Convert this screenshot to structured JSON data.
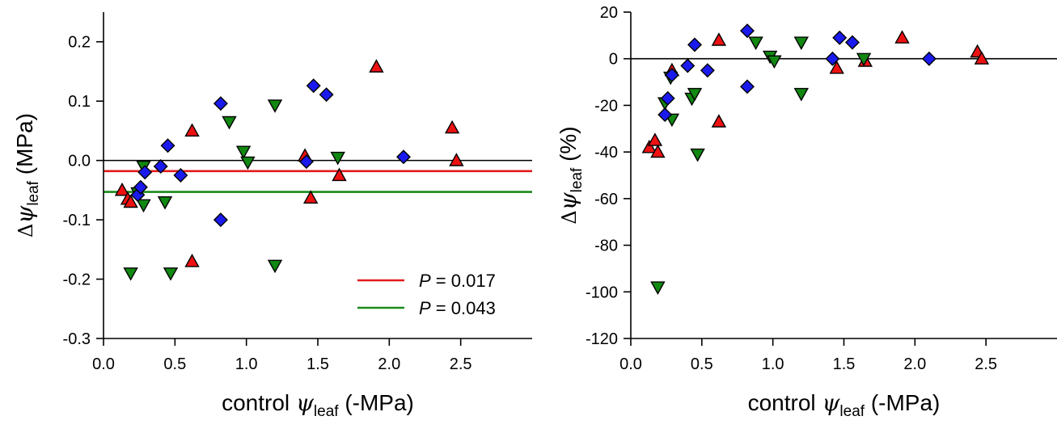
{
  "colors": {
    "red": "#ee1111",
    "green": "#118811",
    "blue": "#1a1aee",
    "red_line": "#e31a1c",
    "green_line": "#1a8a1a"
  },
  "chart_data": [
    {
      "type": "scatter",
      "xlabel_parts": [
        "control ",
        "ψ",
        "leaf",
        " (-MPa)"
      ],
      "ylabel_parts": [
        "Δ",
        "ψ",
        "leaf",
        " (MPa)"
      ],
      "xlim": [
        0,
        3.0
      ],
      "ylim": [
        -0.3,
        0.25
      ],
      "x_ticks": [
        "0.0",
        "0.5",
        "1.0",
        "1.5",
        "2.0",
        "2.5"
      ],
      "y_ticks": [
        "-0.3",
        "-0.2",
        "-0.1",
        "0.0",
        "0.1",
        "0.2"
      ],
      "zero_line": 0.0,
      "hlines": [
        {
          "y": -0.018,
          "color": "red"
        },
        {
          "y": -0.053,
          "color": "green"
        }
      ],
      "legend": [
        {
          "label_prefix": "P",
          "label_rest": " = 0.017",
          "color": "red"
        },
        {
          "label_prefix": "P",
          "label_rest": " = 0.043",
          "color": "green"
        }
      ],
      "legend_position": "bottom-right",
      "series": [
        {
          "marker": "triangle-up",
          "color": "red",
          "points": [
            [
              0.13,
              -0.05
            ],
            [
              0.17,
              -0.065
            ],
            [
              0.19,
              -0.07
            ],
            [
              0.62,
              0.05
            ],
            [
              0.62,
              -0.17
            ],
            [
              1.41,
              0.008
            ],
            [
              1.45,
              -0.063
            ],
            [
              1.65,
              -0.025
            ],
            [
              1.91,
              0.158
            ],
            [
              2.44,
              0.055
            ],
            [
              2.47,
              0.0
            ]
          ]
        },
        {
          "marker": "triangle-down",
          "color": "green",
          "points": [
            [
              0.19,
              -0.19
            ],
            [
              0.24,
              -0.055
            ],
            [
              0.28,
              -0.01
            ],
            [
              0.28,
              -0.075
            ],
            [
              0.43,
              -0.07
            ],
            [
              0.47,
              -0.19
            ],
            [
              0.88,
              0.065
            ],
            [
              0.98,
              0.015
            ],
            [
              1.01,
              -0.003
            ],
            [
              1.2,
              0.093
            ],
            [
              1.2,
              -0.177
            ],
            [
              1.64,
              0.005
            ]
          ]
        },
        {
          "marker": "diamond",
          "color": "blue",
          "points": [
            [
              0.24,
              -0.058
            ],
            [
              0.26,
              -0.045
            ],
            [
              0.29,
              -0.02
            ],
            [
              0.4,
              -0.01
            ],
            [
              0.45,
              0.025
            ],
            [
              0.54,
              -0.025
            ],
            [
              0.82,
              0.096
            ],
            [
              0.82,
              -0.1
            ],
            [
              1.42,
              -0.002
            ],
            [
              1.47,
              0.126
            ],
            [
              1.56,
              0.111
            ],
            [
              2.1,
              0.006
            ]
          ]
        }
      ]
    },
    {
      "type": "scatter",
      "xlabel_parts": [
        "control ",
        "ψ",
        "leaf",
        " (-MPa)"
      ],
      "ylabel_parts": [
        "Δ",
        "ψ",
        "leaf",
        " (%)"
      ],
      "xlim": [
        0,
        3.0
      ],
      "ylim": [
        -120,
        20
      ],
      "x_ticks": [
        "0.0",
        "0.5",
        "1.0",
        "1.5",
        "2.0",
        "2.5"
      ],
      "y_ticks": [
        "-120",
        "-100",
        "-80",
        "-60",
        "-40",
        "-20",
        "0",
        "20"
      ],
      "zero_line": 0,
      "hlines": [],
      "legend": [],
      "series": [
        {
          "marker": "triangle-up",
          "color": "red",
          "points": [
            [
              0.13,
              -38
            ],
            [
              0.17,
              -35
            ],
            [
              0.19,
              -40
            ],
            [
              0.29,
              -5
            ],
            [
              0.62,
              8
            ],
            [
              0.62,
              -27
            ],
            [
              1.45,
              -4
            ],
            [
              1.65,
              -1
            ],
            [
              1.91,
              9
            ],
            [
              2.44,
              3
            ],
            [
              2.47,
              0
            ]
          ]
        },
        {
          "marker": "triangle-down",
          "color": "green",
          "points": [
            [
              0.19,
              -98
            ],
            [
              0.24,
              -19
            ],
            [
              0.28,
              -8
            ],
            [
              0.29,
              -26
            ],
            [
              0.43,
              -17
            ],
            [
              0.45,
              -15
            ],
            [
              0.47,
              -41
            ],
            [
              0.88,
              7
            ],
            [
              0.98,
              1
            ],
            [
              1.01,
              -1
            ],
            [
              1.2,
              7
            ],
            [
              1.2,
              -15
            ],
            [
              1.64,
              0
            ]
          ]
        },
        {
          "marker": "diamond",
          "color": "blue",
          "points": [
            [
              0.24,
              -24
            ],
            [
              0.26,
              -17
            ],
            [
              0.29,
              -7
            ],
            [
              0.4,
              -3
            ],
            [
              0.45,
              6
            ],
            [
              0.54,
              -5
            ],
            [
              0.82,
              12
            ],
            [
              0.82,
              -12
            ],
            [
              1.42,
              0
            ],
            [
              1.47,
              9
            ],
            [
              1.56,
              7
            ],
            [
              2.1,
              0
            ]
          ]
        }
      ]
    }
  ]
}
